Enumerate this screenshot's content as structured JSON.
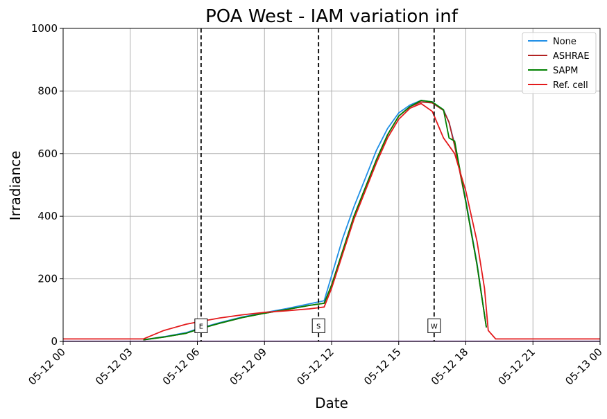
{
  "chart_data": {
    "type": "line",
    "title": "POA West - IAM variation inf",
    "xlabel": "Date",
    "ylabel": "Irradiance",
    "xlim": [
      "05-12 00",
      "05-13 00"
    ],
    "ylim": [
      0,
      1000
    ],
    "grid": true,
    "legend_position": "top-right",
    "x_ticks": [
      "05-12 00",
      "05-12 03",
      "05-12 06",
      "05-12 09",
      "05-12 12",
      "05-12 15",
      "05-12 18",
      "05-12 21",
      "05-13 00"
    ],
    "y_ticks": [
      0,
      200,
      400,
      600,
      800,
      1000
    ],
    "vertical_markers": [
      {
        "label": "E",
        "x": "05-12 06:10"
      },
      {
        "label": "S",
        "x": "05-12 11:25"
      },
      {
        "label": "W",
        "x": "05-12 16:35"
      }
    ],
    "series": [
      {
        "name": "None",
        "color": "#1f8fe6",
        "x": [
          "05-12 03:35",
          "05-12 04:30",
          "05-12 05:30",
          "05-12 06:00",
          "05-12 07:00",
          "05-12 08:00",
          "05-12 09:00",
          "05-12 10:00",
          "05-12 11:00",
          "05-12 11:40",
          "05-12 12:00",
          "05-12 12:30",
          "05-12 13:00",
          "05-12 13:30",
          "05-12 14:00",
          "05-12 14:30",
          "05-12 15:00",
          "05-12 15:30",
          "05-12 16:00",
          "05-12 16:30",
          "05-12 17:00",
          "05-12 17:15",
          "05-12 17:30",
          "05-12 18:00",
          "05-12 18:30",
          "05-12 18:55"
        ],
        "y": [
          5,
          15,
          28,
          40,
          60,
          78,
          92,
          105,
          120,
          130,
          210,
          330,
          430,
          520,
          610,
          680,
          730,
          755,
          770,
          765,
          740,
          700,
          630,
          450,
          250,
          45
        ]
      },
      {
        "name": "ASHRAE",
        "color": "#b22222",
        "x": [
          "05-12 03:35",
          "05-12 04:30",
          "05-12 05:30",
          "05-12 06:00",
          "05-12 07:00",
          "05-12 08:00",
          "05-12 09:00",
          "05-12 10:00",
          "05-12 11:00",
          "05-12 11:40",
          "05-12 12:00",
          "05-12 12:30",
          "05-12 13:00",
          "05-12 13:30",
          "05-12 14:00",
          "05-12 14:30",
          "05-12 15:00",
          "05-12 15:30",
          "05-12 16:00",
          "05-12 16:30",
          "05-12 17:00",
          "05-12 17:15",
          "05-12 17:30",
          "05-12 18:00",
          "05-12 18:30",
          "05-12 18:55"
        ],
        "y": [
          5,
          14,
          26,
          38,
          58,
          76,
          90,
          102,
          115,
          122,
          180,
          290,
          400,
          490,
          580,
          660,
          720,
          750,
          765,
          762,
          738,
          700,
          625,
          445,
          245,
          45
        ]
      },
      {
        "name": "SAPM",
        "color": "#008000",
        "x": [
          "05-12 03:35",
          "05-12 04:30",
          "05-12 05:30",
          "05-12 06:00",
          "05-12 07:00",
          "05-12 08:00",
          "05-12 09:00",
          "05-12 10:00",
          "05-12 11:00",
          "05-12 11:40",
          "05-12 12:00",
          "05-12 12:30",
          "05-12 13:00",
          "05-12 13:30",
          "05-12 14:00",
          "05-12 14:30",
          "05-12 15:00",
          "05-12 15:30",
          "05-12 16:00",
          "05-12 16:30",
          "05-12 17:00",
          "05-12 17:15",
          "05-12 17:30",
          "05-12 18:00",
          "05-12 18:30",
          "05-12 18:55"
        ],
        "y": [
          5,
          14,
          26,
          38,
          58,
          76,
          90,
          102,
          115,
          122,
          180,
          290,
          400,
          490,
          580,
          660,
          720,
          750,
          770,
          765,
          740,
          650,
          640,
          445,
          245,
          45
        ]
      },
      {
        "name": "Ref. cell",
        "color": "#e31a1c",
        "x": [
          "05-12 00:00",
          "05-12 03:35",
          "05-12 04:30",
          "05-12 05:30",
          "05-12 06:00",
          "05-12 07:00",
          "05-12 08:00",
          "05-12 09:00",
          "05-12 10:00",
          "05-12 11:00",
          "05-12 11:40",
          "05-12 12:00",
          "05-12 12:30",
          "05-12 13:00",
          "05-12 13:30",
          "05-12 14:00",
          "05-12 14:30",
          "05-12 15:00",
          "05-12 15:30",
          "05-12 16:00",
          "05-12 16:30",
          "05-12 17:00",
          "05-12 17:30",
          "05-12 18:00",
          "05-12 18:30",
          "05-12 18:50",
          "05-12 19:00",
          "05-12 19:20",
          "05-12 20:00",
          "05-13 00:00"
        ],
        "y": [
          8,
          8,
          35,
          55,
          62,
          75,
          85,
          93,
          98,
          104,
          110,
          170,
          280,
          390,
          480,
          570,
          650,
          710,
          745,
          760,
          735,
          650,
          600,
          480,
          320,
          170,
          35,
          8,
          8,
          8
        ]
      }
    ]
  }
}
